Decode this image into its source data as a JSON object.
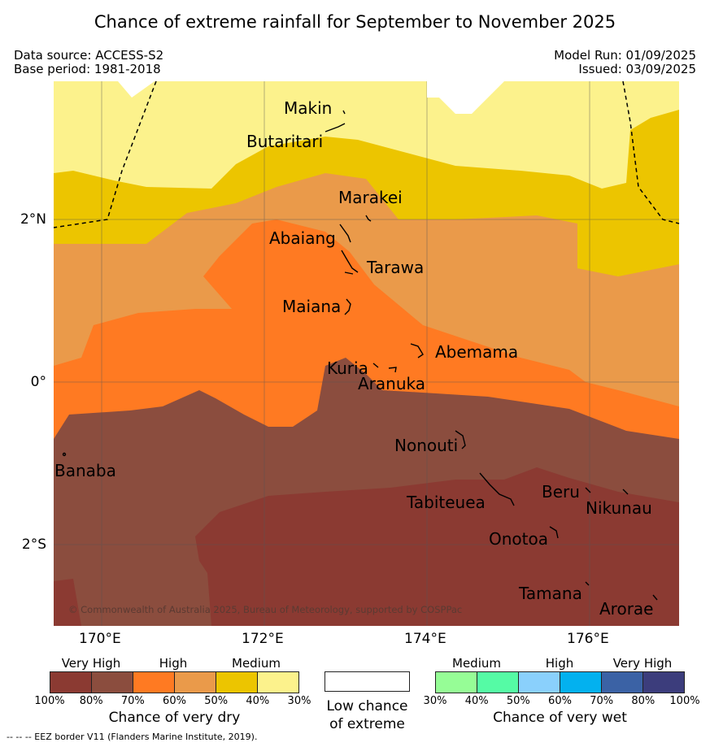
{
  "header": {
    "title": "Chance of extreme rainfall for September to November 2025",
    "data_source": "Data source: ACCESS-S2",
    "base_period": "Base period: 1981-2018",
    "model_run": "Model Run: 01/09/2025",
    "issued": "Issued: 03/09/2025"
  },
  "map": {
    "lat_labels": [
      "2°N",
      "0°",
      "2°S"
    ],
    "lon_labels": [
      "170°E",
      "172°E",
      "174°E",
      "176°E"
    ],
    "places": [
      "Makin",
      "Butaritari",
      "Marakei",
      "Abaiang",
      "Tarawa",
      "Maiana",
      "Abemama",
      "Kuria",
      "Aranuka",
      "Nonouti",
      "Banaba",
      "Beru",
      "Tabiteuea",
      "Nikunau",
      "Onotoa",
      "Tamana",
      "Arorae"
    ],
    "copyright": "© Commonwealth of Australia 2025, Bureau of Meteorology, supported by COSPPac"
  },
  "legend": {
    "dry": {
      "headings": [
        "Very High",
        "High",
        "Medium"
      ],
      "ticks": [
        "100%",
        "80%",
        "70%",
        "60%",
        "50%",
        "40%",
        "30%"
      ],
      "caption": "Chance of very dry",
      "colors": [
        "#8b3a32",
        "#8b4d3e",
        "#ff7a22",
        "#ea9a4a",
        "#ecc500",
        "#fcf28c"
      ]
    },
    "neutral": {
      "caption_line1": "Low chance",
      "caption_line2": "of extreme"
    },
    "wet": {
      "headings": [
        "Medium",
        "High",
        "Very High"
      ],
      "ticks": [
        "30%",
        "40%",
        "50%",
        "60%",
        "70%",
        "80%",
        "100%"
      ],
      "caption": "Chance of very wet",
      "colors": [
        "#96fd96",
        "#55fba5",
        "#8ad0fc",
        "#03b1ef",
        "#3b62a5",
        "#3c3d7c"
      ]
    }
  },
  "footnote": "--  --  -- EEZ border V11 (Flanders Marine Institute, 2019)."
}
